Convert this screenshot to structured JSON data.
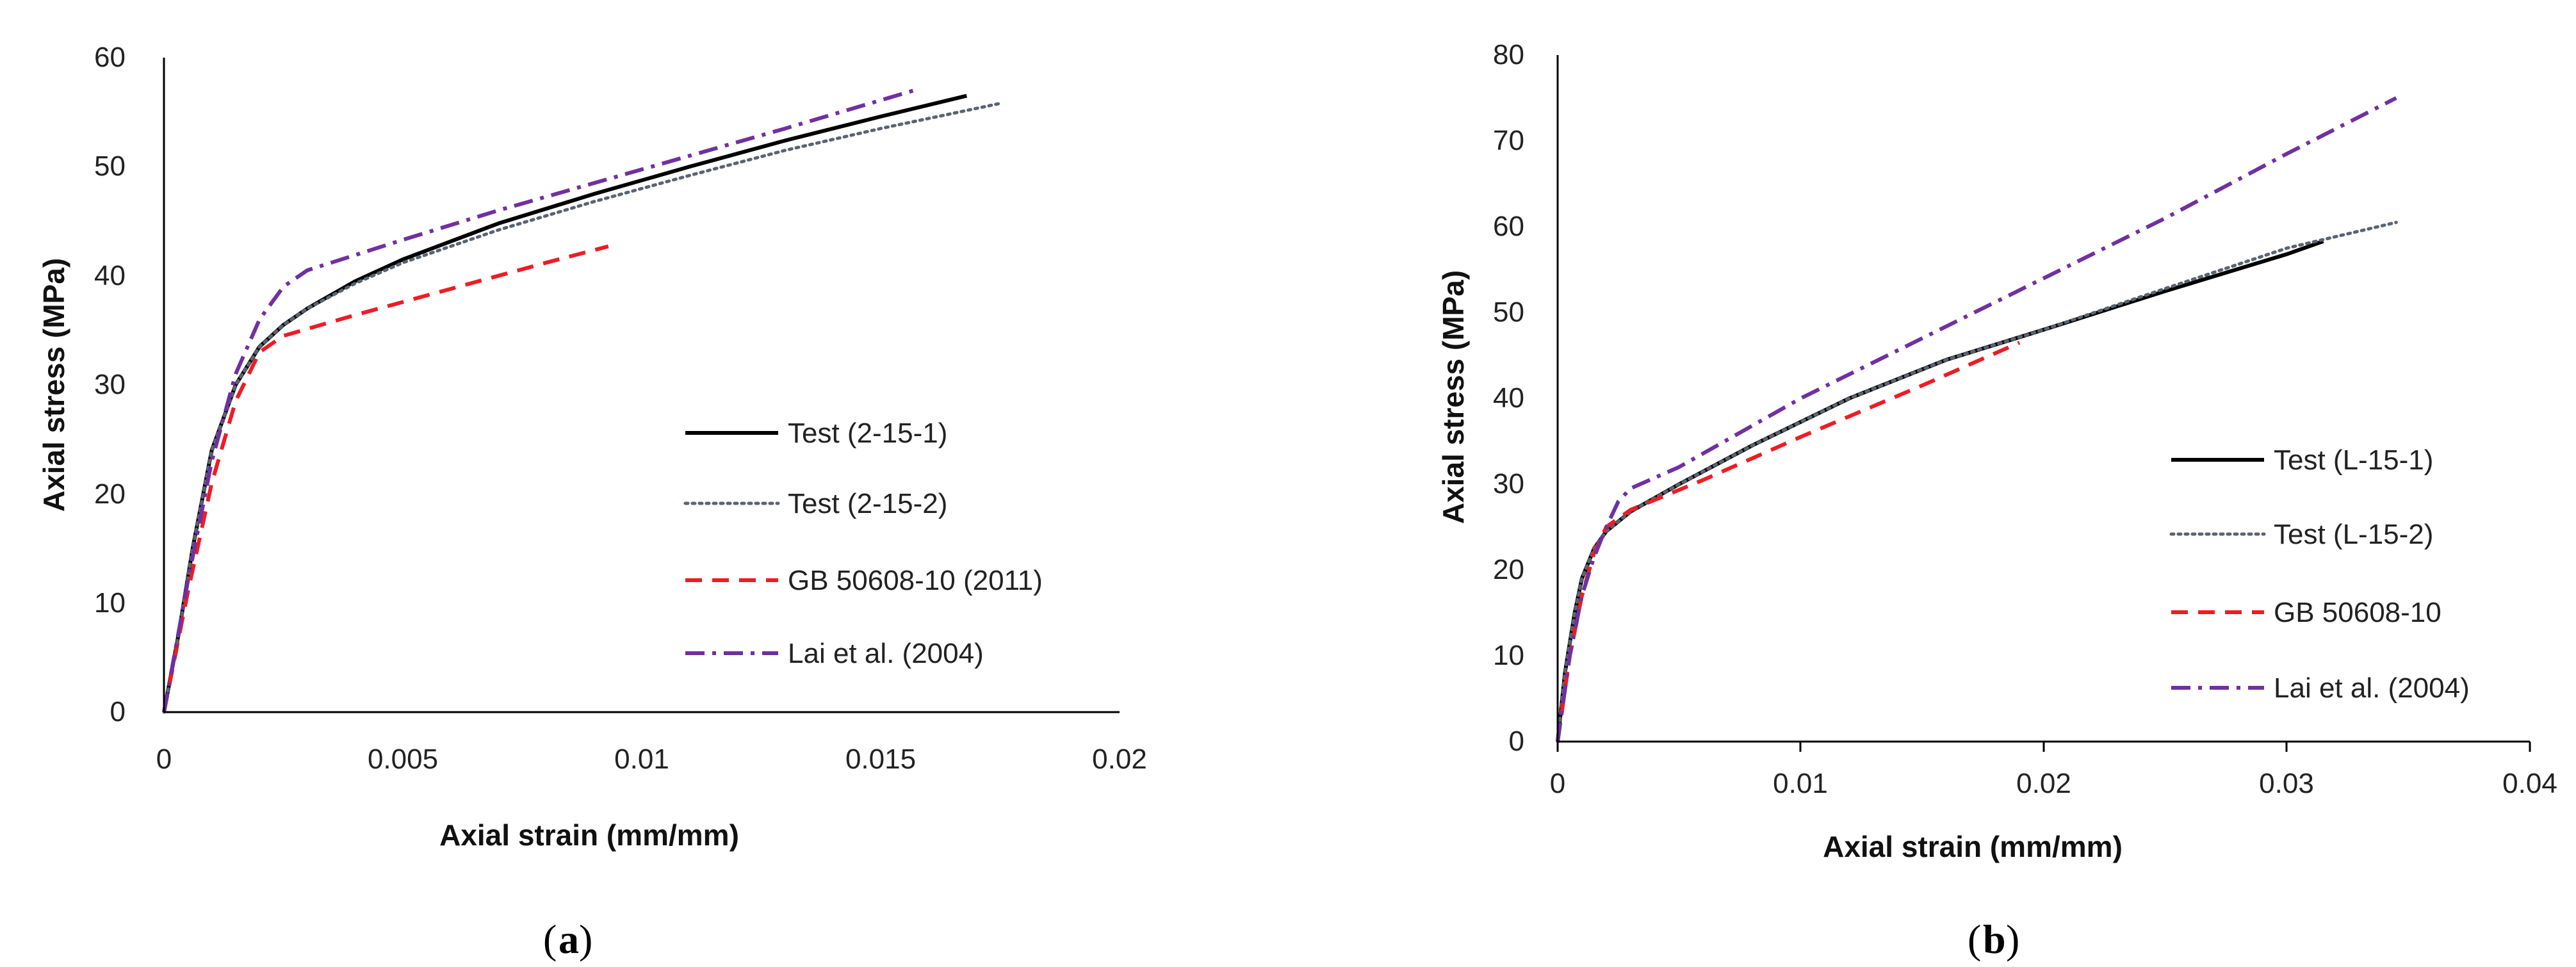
{
  "chart_data": [
    {
      "type": "line",
      "panel_label": "a",
      "xlabel": "Axial strain (mm/mm)",
      "ylabel": "Axial stress (MPa)",
      "xlim": [
        0,
        0.02
      ],
      "ylim": [
        0,
        60
      ],
      "xticks": [
        0,
        0.005,
        0.01,
        0.015,
        0.02
      ],
      "xtick_labels": [
        "0",
        "0.005",
        "0.01",
        "0.015",
        "0.02"
      ],
      "yticks": [
        0,
        10,
        20,
        30,
        40,
        50,
        60
      ],
      "ytick_labels": [
        "0",
        "10",
        "20",
        "30",
        "40",
        "50",
        "60"
      ],
      "grid": false,
      "legend_position": "right",
      "series": [
        {
          "name": "Test (2-15-1)",
          "color": "#000000",
          "style": "solid",
          "x": [
            0,
            0.0003,
            0.0006,
            0.001,
            0.0015,
            0.002,
            0.0025,
            0.003,
            0.004,
            0.005,
            0.007,
            0.009,
            0.011,
            0.013,
            0.015,
            0.0168
          ],
          "y": [
            0,
            7,
            15,
            24,
            30,
            33.5,
            35.5,
            37,
            39.5,
            41.5,
            44.8,
            47.5,
            50,
            52.4,
            54.6,
            56.5
          ]
        },
        {
          "name": "Test (2-15-2)",
          "color": "#5a6470",
          "style": "dotted",
          "x": [
            0,
            0.0003,
            0.0006,
            0.001,
            0.0015,
            0.002,
            0.0025,
            0.003,
            0.004,
            0.005,
            0.007,
            0.009,
            0.011,
            0.013,
            0.015,
            0.0175
          ],
          "y": [
            0,
            7,
            15,
            24,
            30,
            33.5,
            35.5,
            37,
            39.3,
            41.2,
            44.2,
            46.8,
            49.2,
            51.5,
            53.5,
            55.8
          ]
        },
        {
          "name": "GB 50608-10 (2011)",
          "color": "#ee1c24",
          "style": "dashed",
          "x": [
            0,
            0.0005,
            0.001,
            0.0015,
            0.002,
            0.0025,
            0.004,
            0.006,
            0.008,
            0.0093
          ],
          "y": [
            0,
            11,
            21,
            28.5,
            33,
            34.5,
            36.4,
            38.8,
            41.2,
            42.7
          ]
        },
        {
          "name": "Lai et al. (2004)",
          "color": "#7030a0",
          "style": "dashdot",
          "x": [
            0,
            0.0005,
            0.001,
            0.0015,
            0.002,
            0.0025,
            0.003,
            0.005,
            0.007,
            0.009,
            0.011,
            0.013,
            0.0157
          ],
          "y": [
            0,
            12,
            23,
            31,
            36,
            39,
            40.5,
            43.3,
            46,
            48.5,
            51,
            53.5,
            57
          ]
        }
      ]
    },
    {
      "type": "line",
      "panel_label": "b",
      "xlabel": "Axial strain (mm/mm)",
      "ylabel": "Axial stress (MPa)",
      "xlim": [
        0,
        0.04
      ],
      "ylim": [
        0,
        80
      ],
      "xticks": [
        0,
        0.01,
        0.02,
        0.03,
        0.04
      ],
      "xtick_labels": [
        "0",
        "0.01",
        "0.02",
        "0.03",
        "0.04"
      ],
      "yticks": [
        0,
        10,
        20,
        30,
        40,
        50,
        60,
        70,
        80
      ],
      "ytick_labels": [
        "0",
        "10",
        "20",
        "30",
        "40",
        "50",
        "60",
        "70",
        "80"
      ],
      "grid": false,
      "legend_position": "right",
      "series": [
        {
          "name": "Test (L-15-1)",
          "color": "#000000",
          "style": "solid",
          "x": [
            0,
            0.0003,
            0.0007,
            0.001,
            0.0015,
            0.002,
            0.003,
            0.005,
            0.008,
            0.012,
            0.016,
            0.02,
            0.025,
            0.03,
            0.0315
          ],
          "y": [
            0,
            8,
            15,
            19,
            22.5,
            24.5,
            26.8,
            30,
            34.5,
            40,
            44.5,
            48,
            52.5,
            56.8,
            58.3
          ]
        },
        {
          "name": "Test (L-15-2)",
          "color": "#5a6470",
          "style": "dotted",
          "x": [
            0,
            0.0003,
            0.0007,
            0.001,
            0.0015,
            0.002,
            0.003,
            0.005,
            0.008,
            0.012,
            0.016,
            0.02,
            0.025,
            0.03,
            0.0345
          ],
          "y": [
            0,
            8,
            15,
            19,
            22.5,
            24.5,
            26.8,
            30,
            34.5,
            40,
            44.5,
            48,
            52.8,
            57.5,
            60.5
          ]
        },
        {
          "name": "GB 50608-10",
          "color": "#ee1c24",
          "style": "dashed",
          "x": [
            0,
            0.0005,
            0.001,
            0.0015,
            0.002,
            0.003,
            0.006,
            0.01,
            0.015,
            0.019
          ],
          "y": [
            0,
            10,
            17,
            22,
            25,
            27,
            30.5,
            35.5,
            41.5,
            46.5
          ]
        },
        {
          "name": "Lai et al. (2004)",
          "color": "#7030a0",
          "style": "dashdot",
          "x": [
            0,
            0.0005,
            0.001,
            0.0015,
            0.002,
            0.0025,
            0.003,
            0.005,
            0.01,
            0.015,
            0.02,
            0.025,
            0.03,
            0.0345
          ],
          "y": [
            0,
            10,
            17,
            21.5,
            25,
            28,
            29.5,
            32,
            40,
            47,
            54,
            61,
            68.5,
            75
          ]
        }
      ]
    }
  ]
}
